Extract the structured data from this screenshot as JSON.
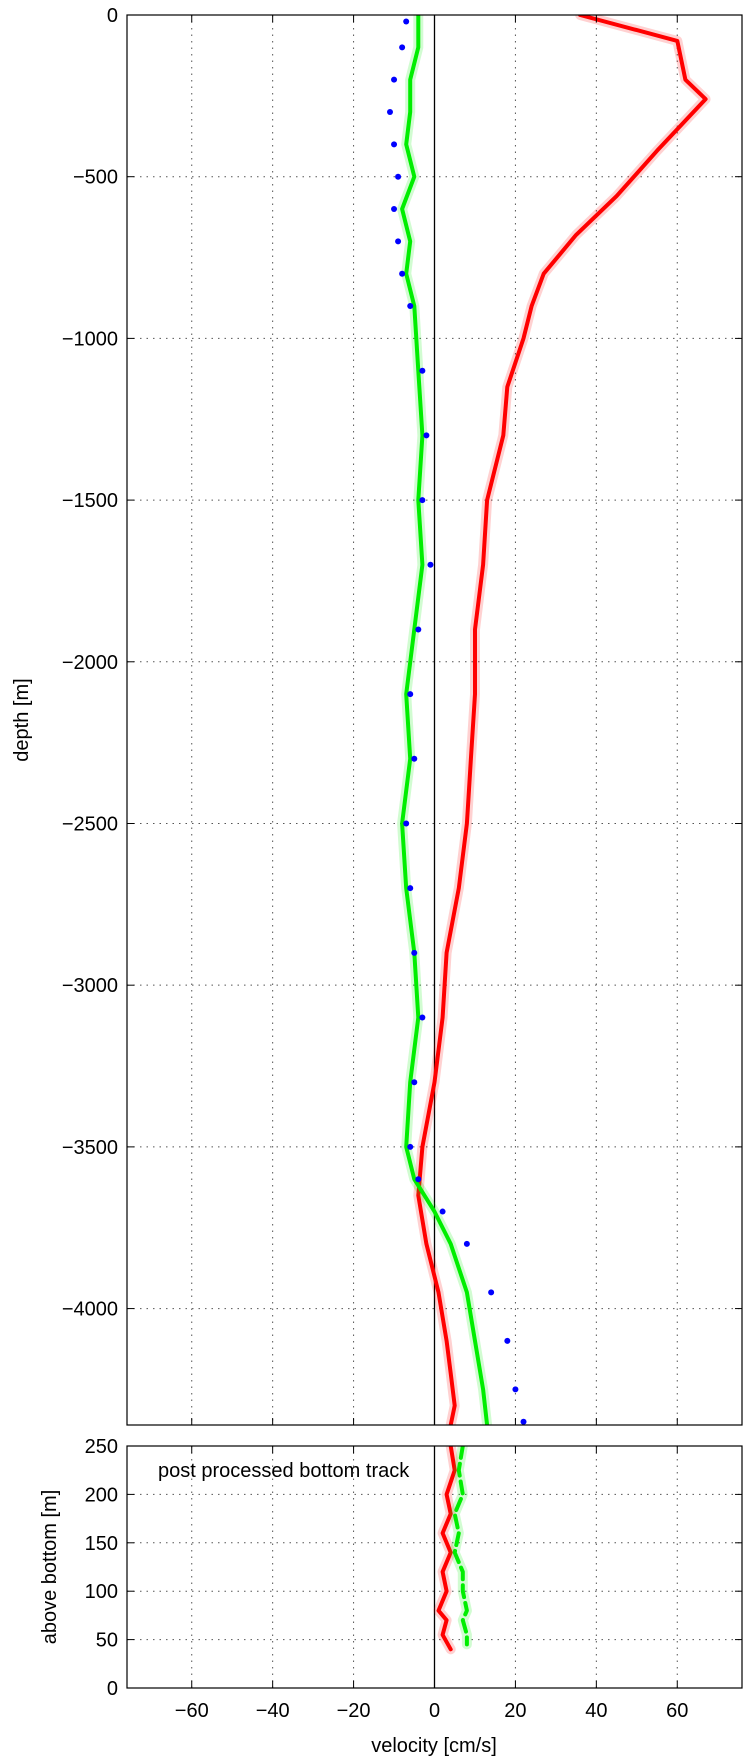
{
  "chart_data": [
    {
      "type": "line",
      "panel": "profile",
      "xlabel": "",
      "ylabel": "depth [m]",
      "xlim": [
        -76,
        76
      ],
      "ylim": [
        -4360,
        0
      ],
      "xticks": [
        -60,
        -40,
        -20,
        0,
        20,
        40,
        60
      ],
      "yticks": [
        0,
        -500,
        -1000,
        -1500,
        -2000,
        -2500,
        -3000,
        -3500,
        -4000
      ],
      "ytick_labels": [
        "0",
        "−500",
        "−1000",
        "−1500",
        "−2000",
        "−2500",
        "−3000",
        "−3500",
        "−4000"
      ],
      "grid": true,
      "colors": {
        "u": "#ff0000",
        "v": "#00ee00",
        "shear": "#0000ff"
      },
      "series": [
        {
          "color": "#ff0000",
          "style": "thick-solid",
          "x": [
            36,
            60,
            62,
            67,
            55,
            45,
            35,
            27,
            24,
            22,
            18,
            17,
            13,
            12,
            10,
            10,
            9,
            8,
            6,
            3,
            2,
            0,
            -3,
            -4,
            -2,
            1,
            3,
            4,
            5,
            4
          ],
          "y": [
            0,
            -80,
            -200,
            -260,
            -420,
            -560,
            -680,
            -800,
            -900,
            -1000,
            -1150,
            -1300,
            -1500,
            -1700,
            -1900,
            -2100,
            -2300,
            -2500,
            -2700,
            -2900,
            -3100,
            -3300,
            -3500,
            -3650,
            -3800,
            -3950,
            -4100,
            -4200,
            -4300,
            -4360
          ]
        },
        {
          "color": "#00ee00",
          "style": "thick-solid",
          "x": [
            -4,
            -4,
            -6,
            -6,
            -7,
            -5,
            -8,
            -6,
            -7,
            -5,
            -4,
            -3,
            -4,
            -3,
            -5,
            -7,
            -6,
            -8,
            -7,
            -5,
            -4,
            -6,
            -7,
            -5,
            0,
            4,
            8,
            10,
            12,
            13
          ],
          "y": [
            0,
            -100,
            -200,
            -300,
            -400,
            -500,
            -600,
            -700,
            -800,
            -900,
            -1100,
            -1300,
            -1500,
            -1700,
            -1900,
            -2100,
            -2300,
            -2500,
            -2700,
            -2900,
            -3100,
            -3300,
            -3500,
            -3600,
            -3700,
            -3800,
            -3950,
            -4100,
            -4250,
            -4360
          ]
        },
        {
          "color": "#0000ff",
          "style": "dots",
          "x": [
            -7,
            -8,
            -10,
            -11,
            -10,
            -9,
            -10,
            -9,
            -8,
            -6,
            -3,
            -2,
            -3,
            -1,
            -4,
            -6,
            -5,
            -7,
            -6,
            -5,
            -3,
            -5,
            -6,
            -4,
            2,
            8,
            14,
            18,
            20,
            22
          ],
          "y": [
            -20,
            -100,
            -200,
            -300,
            -400,
            -500,
            -600,
            -700,
            -800,
            -900,
            -1100,
            -1300,
            -1500,
            -1700,
            -1900,
            -2100,
            -2300,
            -2500,
            -2700,
            -2900,
            -3100,
            -3300,
            -3500,
            -3600,
            -3700,
            -3800,
            -3950,
            -4100,
            -4250,
            -4350
          ]
        }
      ]
    },
    {
      "type": "line",
      "panel": "bottom",
      "xlabel": "velocity [cm/s]",
      "ylabel": "above bottom [m]",
      "xlim": [
        -76,
        76
      ],
      "ylim": [
        0,
        250
      ],
      "xticks": [
        -60,
        -40,
        -20,
        0,
        20,
        40,
        60
      ],
      "xtick_labels": [
        "−60",
        "−40",
        "−20",
        "0",
        "20",
        "40",
        "60"
      ],
      "yticks": [
        0,
        50,
        100,
        150,
        200,
        250
      ],
      "ytick_labels": [
        "0",
        "50",
        "100",
        "150",
        "200",
        "250"
      ],
      "grid": true,
      "annotation": "post processed bottom track",
      "series": [
        {
          "color": "#ff0000",
          "style": "thick-solid",
          "x": [
            4,
            5,
            3,
            4,
            2,
            4,
            2,
            3,
            1,
            3,
            2,
            4
          ],
          "y": [
            250,
            225,
            200,
            180,
            160,
            140,
            120,
            100,
            80,
            70,
            55,
            40
          ]
        },
        {
          "color": "#00ee00",
          "style": "thick-dashed",
          "x": [
            7,
            6,
            7,
            5,
            6,
            5,
            7,
            7,
            8,
            7,
            8,
            8
          ],
          "y": [
            250,
            225,
            200,
            180,
            160,
            140,
            120,
            100,
            80,
            70,
            55,
            45
          ]
        }
      ]
    }
  ]
}
